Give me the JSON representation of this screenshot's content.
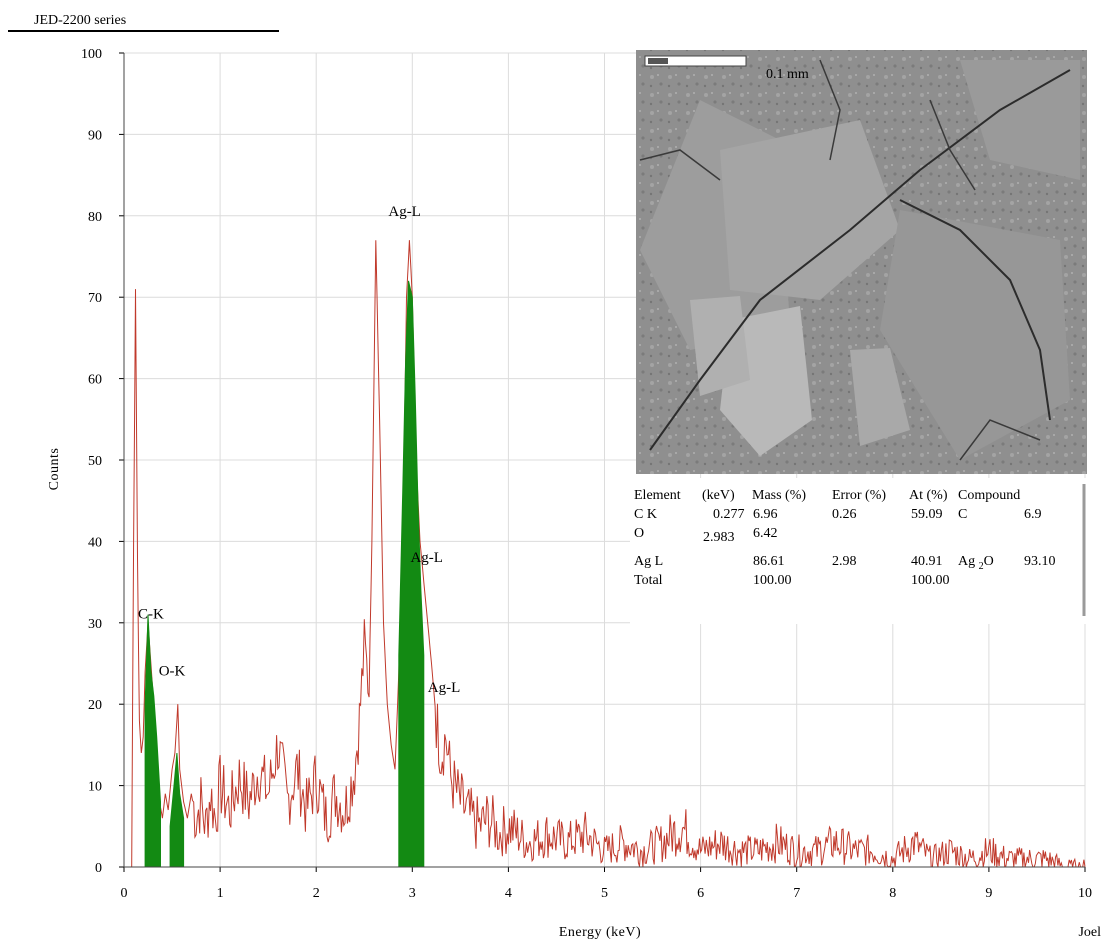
{
  "header": {
    "series_label": "JED-2200 series"
  },
  "micrograph": {
    "scale_label": "0.1 mm"
  },
  "corner_label": "Joel",
  "composition_table": {
    "headers": [
      "Element",
      "(keV)",
      "Mass (%)",
      "Error (%)",
      "At (%)",
      "Compound"
    ],
    "rows": [
      {
        "element": "C K",
        "kev": "0.277",
        "mass": "6.96",
        "error": "0.26",
        "at": "59.09",
        "compound": "C",
        "compound_value": "6.9"
      },
      {
        "element": "O",
        "kev": "2.983",
        "mass": "6.42",
        "error": "",
        "at": "",
        "compound": "",
        "compound_value": ""
      },
      {
        "element": "Ag L",
        "kev": "",
        "mass": "86.61",
        "error": "2.98",
        "at": "40.91",
        "compound": "Ag2O",
        "compound_value": "93.10"
      },
      {
        "element": "Total",
        "kev": "",
        "mass": "100.00",
        "error": "",
        "at": "100.00",
        "compound": "",
        "compound_value": ""
      }
    ]
  },
  "chart_data": {
    "type": "area",
    "title": "",
    "xlabel": "Energy (keV)",
    "ylabel": "Counts",
    "xlim": [
      0,
      10
    ],
    "ylim": [
      0,
      100
    ],
    "xticks": [
      "0",
      "1",
      "2",
      "3",
      "4",
      "5",
      "6",
      "7",
      "8",
      "9",
      "10"
    ],
    "yticks": [
      "0",
      "10",
      "20",
      "30",
      "40",
      "50",
      "60",
      "70",
      "80",
      "90",
      "100"
    ],
    "grid": true,
    "colors": {
      "spectrum": "#c0392b",
      "peaks": "#138a13",
      "grid": "#dcdcdc"
    },
    "spectrum": [
      [
        0.08,
        0
      ],
      [
        0.1,
        40
      ],
      [
        0.12,
        71
      ],
      [
        0.14,
        38
      ],
      [
        0.16,
        18
      ],
      [
        0.18,
        14
      ],
      [
        0.2,
        16
      ],
      [
        0.22,
        24
      ],
      [
        0.25,
        30
      ],
      [
        0.28,
        25
      ],
      [
        0.31,
        20
      ],
      [
        0.34,
        12
      ],
      [
        0.37,
        8
      ],
      [
        0.4,
        6
      ],
      [
        0.43,
        9
      ],
      [
        0.46,
        7
      ],
      [
        0.5,
        12
      ],
      [
        0.53,
        14
      ],
      [
        0.56,
        20
      ],
      [
        0.58,
        12
      ],
      [
        0.62,
        8
      ],
      [
        0.66,
        6
      ],
      [
        0.7,
        9
      ],
      [
        0.75,
        6
      ],
      [
        0.8,
        8
      ],
      [
        0.85,
        5
      ],
      [
        0.9,
        9
      ],
      [
        0.95,
        6
      ],
      [
        1.0,
        10
      ],
      [
        1.1,
        7
      ],
      [
        1.2,
        11
      ],
      [
        1.3,
        8
      ],
      [
        1.4,
        12
      ],
      [
        1.5,
        9
      ],
      [
        1.6,
        15
      ],
      [
        1.7,
        8
      ],
      [
        1.8,
        12
      ],
      [
        1.9,
        7
      ],
      [
        2.0,
        11
      ],
      [
        2.1,
        6
      ],
      [
        2.2,
        9
      ],
      [
        2.3,
        7
      ],
      [
        2.4,
        12
      ],
      [
        2.45,
        18
      ],
      [
        2.5,
        27
      ],
      [
        2.55,
        22
      ],
      [
        2.58,
        40
      ],
      [
        2.62,
        77
      ],
      [
        2.66,
        55
      ],
      [
        2.7,
        30
      ],
      [
        2.74,
        20
      ],
      [
        2.78,
        15
      ],
      [
        2.82,
        12
      ],
      [
        2.86,
        24
      ],
      [
        2.9,
        40
      ],
      [
        2.94,
        70
      ],
      [
        2.97,
        77
      ],
      [
        3.0,
        70
      ],
      [
        3.04,
        50
      ],
      [
        3.08,
        40
      ],
      [
        3.12,
        35
      ],
      [
        3.16,
        30
      ],
      [
        3.2,
        25
      ],
      [
        3.25,
        18
      ],
      [
        3.3,
        14
      ],
      [
        3.35,
        16
      ],
      [
        3.4,
        11
      ],
      [
        3.5,
        8
      ],
      [
        3.6,
        6
      ],
      [
        3.7,
        5
      ],
      [
        3.8,
        6
      ],
      [
        3.9,
        4
      ],
      [
        4.0,
        5
      ],
      [
        4.2,
        3
      ],
      [
        4.4,
        4
      ],
      [
        4.6,
        3
      ],
      [
        4.8,
        4
      ],
      [
        5.0,
        2
      ],
      [
        5.2,
        3
      ],
      [
        5.4,
        2
      ],
      [
        5.6,
        3
      ],
      [
        5.8,
        5
      ],
      [
        6.0,
        2
      ],
      [
        6.2,
        3
      ],
      [
        6.4,
        2
      ],
      [
        6.6,
        2
      ],
      [
        6.8,
        3
      ],
      [
        7.0,
        2
      ],
      [
        7.2,
        2
      ],
      [
        7.4,
        3
      ],
      [
        7.6,
        2
      ],
      [
        7.8,
        2
      ],
      [
        8.0,
        1
      ],
      [
        8.22,
        3
      ],
      [
        8.4,
        1
      ],
      [
        8.6,
        2
      ],
      [
        8.8,
        1
      ],
      [
        9.0,
        2
      ],
      [
        9.2,
        1
      ],
      [
        9.4,
        1
      ],
      [
        9.6,
        1
      ],
      [
        9.8,
        0
      ],
      [
        10.0,
        0
      ]
    ],
    "peak_fills": [
      {
        "name": "C-K",
        "points": [
          [
            0.22,
            0
          ],
          [
            0.22,
            20
          ],
          [
            0.25,
            31
          ],
          [
            0.28,
            24
          ],
          [
            0.31,
            21
          ],
          [
            0.34,
            16
          ],
          [
            0.38,
            8
          ],
          [
            0.38,
            0
          ]
        ]
      },
      {
        "name": "O-K",
        "points": [
          [
            0.48,
            0
          ],
          [
            0.48,
            5
          ],
          [
            0.52,
            10
          ],
          [
            0.55,
            14
          ],
          [
            0.58,
            9
          ],
          [
            0.62,
            6
          ],
          [
            0.62,
            0
          ]
        ]
      },
      {
        "name": "Ag-L",
        "points": [
          [
            2.86,
            0
          ],
          [
            2.86,
            26
          ],
          [
            2.9,
            46
          ],
          [
            2.93,
            62
          ],
          [
            2.96,
            72
          ],
          [
            3.0,
            70
          ],
          [
            3.03,
            58
          ],
          [
            3.06,
            44
          ],
          [
            3.09,
            34
          ],
          [
            3.12,
            26
          ],
          [
            3.12,
            0
          ]
        ]
      }
    ],
    "annotations": [
      {
        "text": "Ag-L",
        "x": 2.92,
        "y": 80
      },
      {
        "text": "Ag-L",
        "x": 3.15,
        "y": 37.5
      },
      {
        "text": "Ag-L",
        "x": 3.33,
        "y": 21.5
      },
      {
        "text": "C-K",
        "x": 0.28,
        "y": 30.5
      },
      {
        "text": "O-K",
        "x": 0.5,
        "y": 23.5
      }
    ]
  }
}
